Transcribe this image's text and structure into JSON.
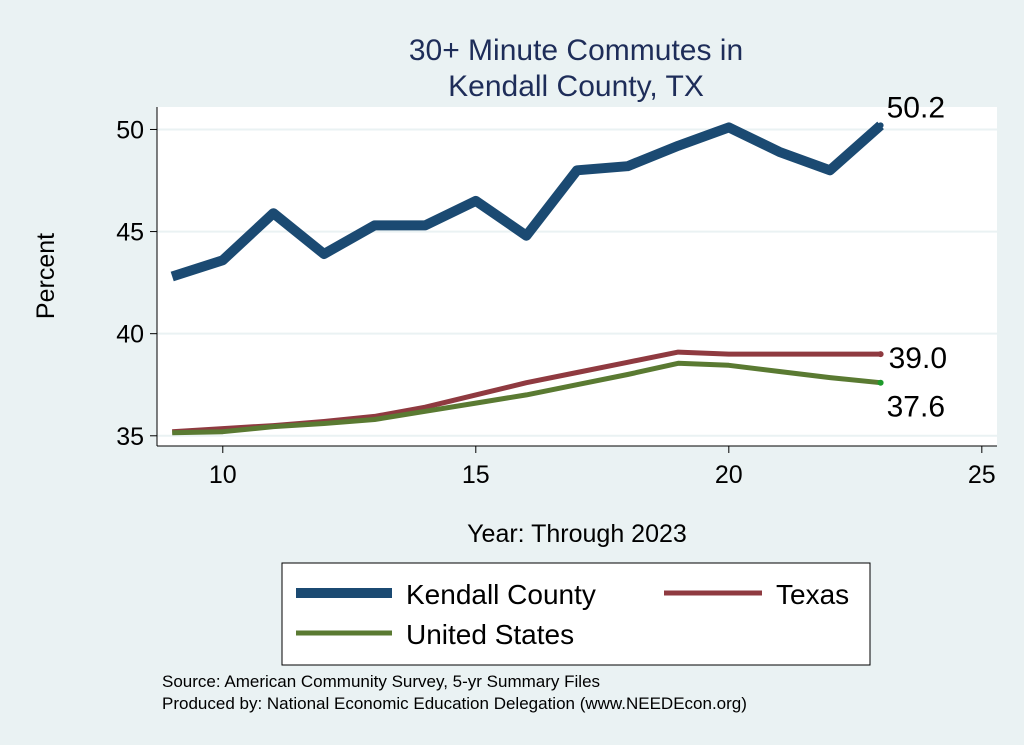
{
  "chart_data": {
    "type": "line",
    "title_lines": [
      "30+ Minute Commutes in",
      "Kendall County, TX"
    ],
    "xlabel": "Year: Through 2023",
    "ylabel": "Percent",
    "xlim": [
      8.7,
      25.3
    ],
    "ylim": [
      34.5,
      51.1
    ],
    "xticks": [
      10,
      15,
      20,
      25
    ],
    "yticks": [
      35,
      40,
      45,
      50
    ],
    "grid": true,
    "legend_position": "bottom",
    "x": [
      9,
      10,
      11,
      12,
      13,
      14,
      15,
      16,
      17,
      18,
      19,
      20,
      21,
      22,
      23
    ],
    "series": [
      {
        "name": "Kendall County",
        "color": "#1b4a72",
        "values": [
          42.8,
          43.6,
          45.9,
          43.9,
          45.3,
          45.3,
          46.5,
          44.8,
          48.0,
          48.2,
          49.2,
          50.1,
          48.9,
          48.0,
          50.2
        ],
        "end_label": "50.2"
      },
      {
        "name": "Texas",
        "color": "#8f3a40",
        "values": [
          35.2,
          35.35,
          35.5,
          35.7,
          35.95,
          36.4,
          37.0,
          37.6,
          38.1,
          38.6,
          39.1,
          39.0,
          39.0,
          39.0,
          39.0
        ],
        "end_label": "39.0"
      },
      {
        "name": "United States",
        "color": "#5a7a32",
        "values": [
          35.15,
          35.2,
          35.45,
          35.6,
          35.8,
          36.2,
          36.6,
          37.0,
          37.5,
          38.0,
          38.55,
          38.45,
          38.15,
          37.85,
          37.6
        ],
        "end_label": "37.6"
      }
    ],
    "notes": [
      "Source: American Community Survey, 5-yr Summary Files",
      "Produced by: National Economic Education Delegation (www.NEEDEcon.org)"
    ]
  }
}
